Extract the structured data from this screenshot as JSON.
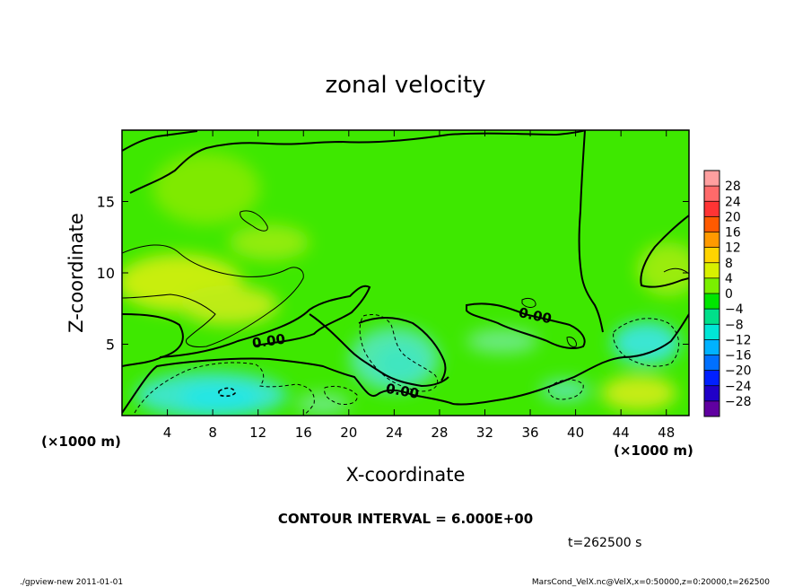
{
  "chart_data": {
    "type": "heatmap",
    "title": "zonal velocity",
    "xlabel": "X-coordinate",
    "ylabel": "Z-coordinate",
    "x_unit_label": "(×1000 m)",
    "xlim": [
      0,
      50
    ],
    "ylim": [
      0,
      20
    ],
    "x_ticks": [
      4,
      8,
      12,
      16,
      20,
      24,
      28,
      32,
      36,
      40,
      44,
      48
    ],
    "y_ticks": [
      5,
      10,
      15
    ],
    "colorbar": {
      "labels": [
        "28",
        "24",
        "20",
        "16",
        "12",
        "8",
        "4",
        "0",
        "−4",
        "−8",
        "−12",
        "−16",
        "−20",
        "−24",
        "−28"
      ],
      "colors": [
        "#ff9f9f",
        "#ff6a6a",
        "#ff3434",
        "#ff5a00",
        "#ff9a00",
        "#ffd400",
        "#d8f000",
        "#7af000",
        "#00e600",
        "#00e08a",
        "#00e6d6",
        "#00b2ff",
        "#0070ff",
        "#0020ff",
        "#2000c8",
        "#6000a0"
      ]
    },
    "contour_labels": [
      {
        "text": "0.00",
        "x": 13.0,
        "z": 5.0
      },
      {
        "text": "0.00",
        "x": 24.0,
        "z": 1.6
      },
      {
        "text": "0.00",
        "x": 36.3,
        "z": 6.7
      }
    ],
    "contour_interval_text": "CONTOUR INTERVAL = 6.000E+00",
    "time_text": "t=262500 s"
  },
  "footer": {
    "left": "./gpview-new  2011-01-01",
    "right": "MarsCond_VelX.nc@VelX,x=0:50000,z=0:20000,t=262500"
  }
}
